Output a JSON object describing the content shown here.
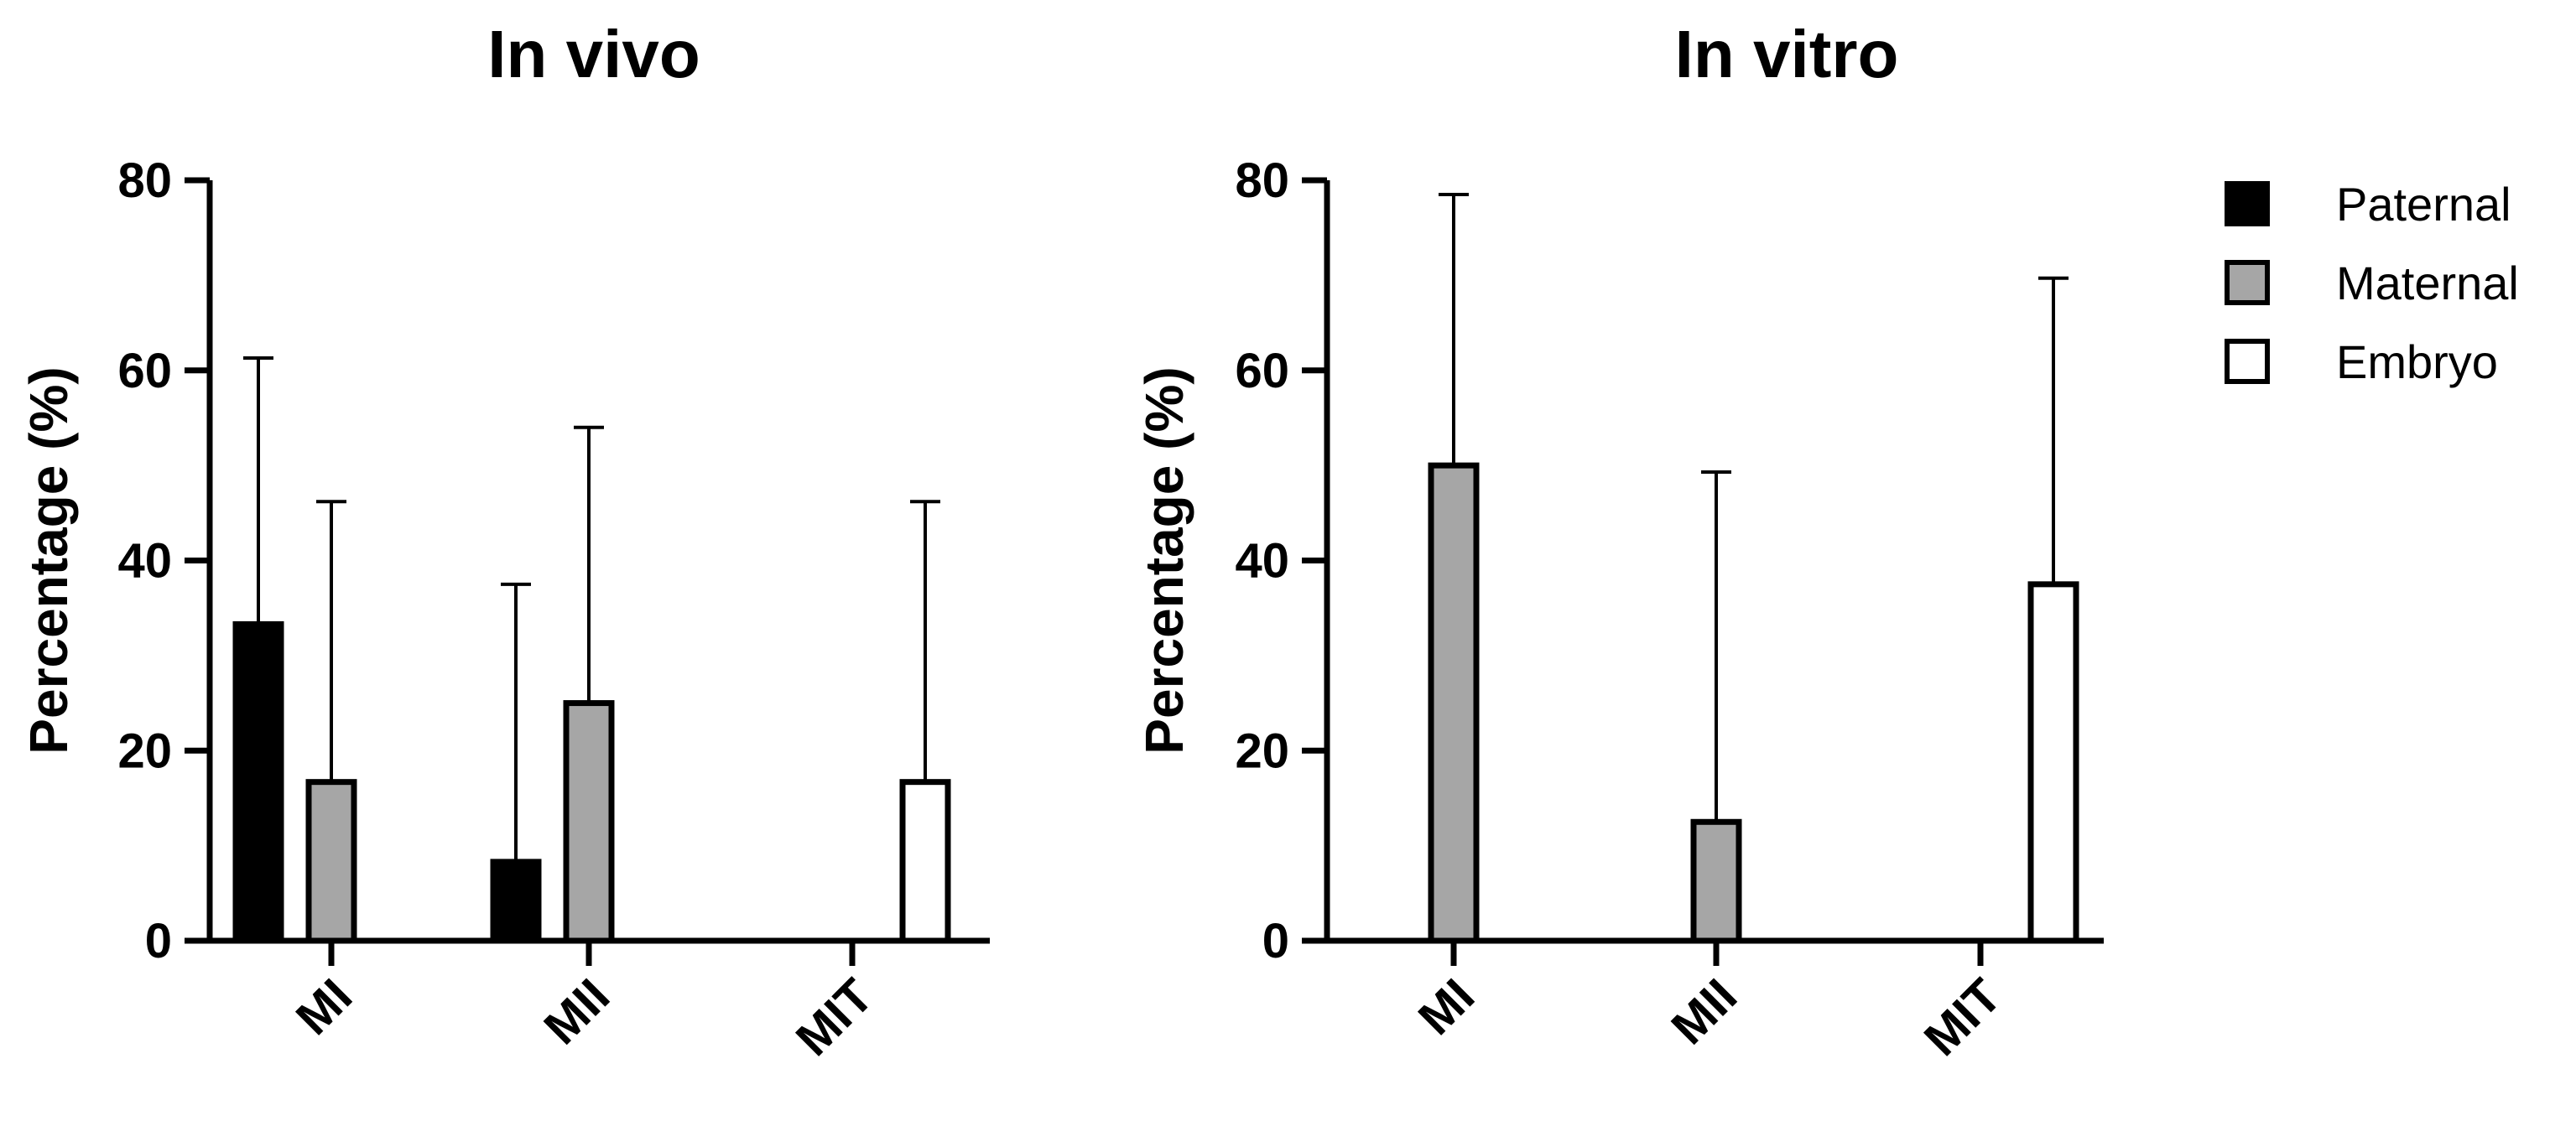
{
  "legend": {
    "entries": [
      {
        "name": "Paternal",
        "color": "#000000"
      },
      {
        "name": "Maternal",
        "color": "#a6a6a6"
      },
      {
        "name": "Embryo",
        "color": "#ffffff"
      }
    ],
    "placement": "right"
  },
  "chart_data": [
    {
      "type": "bar",
      "title": "In vivo",
      "xlabel": "",
      "ylabel": "Percentage (%)",
      "ylim": [
        0,
        80
      ],
      "yticks": [
        "0",
        "20",
        "40",
        "60",
        "80"
      ],
      "categories": [
        "MI",
        "MII",
        "MIT"
      ],
      "grid": false,
      "series": [
        {
          "name": "Paternal",
          "values": [
            33.3,
            8.3,
            0
          ],
          "error": [
            28,
            29.2,
            0
          ]
        },
        {
          "name": "Maternal",
          "values": [
            16.7,
            25,
            0
          ],
          "error": [
            29.5,
            29,
            0
          ]
        },
        {
          "name": "Embryo",
          "values": [
            0,
            0,
            16.7
          ],
          "error": [
            0,
            0,
            29.5
          ]
        }
      ]
    },
    {
      "type": "bar",
      "title": "In vitro",
      "xlabel": "",
      "ylabel": "Percentage (%)",
      "ylim": [
        0,
        80
      ],
      "yticks": [
        "0",
        "20",
        "40",
        "60",
        "80"
      ],
      "categories": [
        "MI",
        "MII",
        "MIT"
      ],
      "grid": false,
      "series": [
        {
          "name": "Paternal",
          "values": [
            0,
            0,
            0
          ],
          "error": [
            0,
            0,
            0
          ]
        },
        {
          "name": "Maternal",
          "values": [
            50,
            12.5,
            0
          ],
          "error": [
            28.5,
            36.8,
            0
          ]
        },
        {
          "name": "Embryo",
          "values": [
            0,
            0,
            37.5
          ],
          "error": [
            0,
            0,
            32.2
          ]
        }
      ]
    }
  ]
}
